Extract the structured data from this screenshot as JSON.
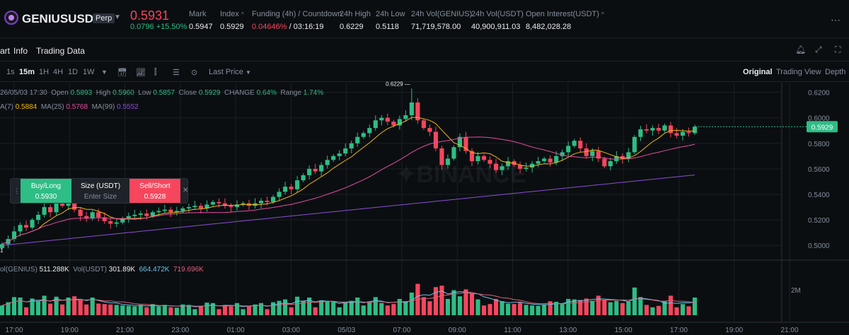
{
  "header": {
    "symbol": "GENIUSUSDT",
    "badge": "Perp",
    "last_price": "0.5931",
    "change": "0.0796 +15.50%",
    "stats": [
      {
        "label": "Mark",
        "value": "0.5947"
      },
      {
        "label": "Index",
        "value": "0.5929"
      },
      {
        "label": "Funding (4h) / Countdown",
        "value_red": "0.04646%",
        "value": "/ 03:16:19"
      },
      {
        "label": "24h High",
        "value": "0.6229"
      },
      {
        "label": "24h Low",
        "value": "0.5118"
      },
      {
        "label": "24h Vol(GENIUS)",
        "value": "71,719,578.00"
      },
      {
        "label": "24h Vol(USDT)",
        "value": "40,900,911.03"
      },
      {
        "label": "Open Interest(USDT)",
        "value": "8,482,028.28"
      }
    ]
  },
  "tabs": {
    "chart": "art",
    "info": "Info",
    "trading_data": "Trading Data"
  },
  "toolbar": {
    "intervals": [
      "1s",
      "15m",
      "1H",
      "4H",
      "1D",
      "1W"
    ],
    "active_interval": "15m",
    "price_type": "Last Price",
    "views": [
      "Original",
      "Trading View",
      "Depth"
    ],
    "active_view": "Original"
  },
  "ohlc_line": {
    "date": "26/05/03 17:30",
    "open_label": "Open",
    "open": "0.5893",
    "high_label": "High",
    "high": "0.5960",
    "low_label": "Low",
    "low": "0.5857",
    "close_label": "Close",
    "close": "0.5929",
    "change_label": "CHANGE",
    "change": "0.64%",
    "range_label": "Range",
    "range": "1.74%"
  },
  "ma_line": {
    "ma7_label": "A(7)",
    "ma7": "0.5884",
    "ma25_label": "MA(25)",
    "ma25": "0.5768",
    "ma99_label": "MA(99)",
    "ma99": "0.5552"
  },
  "vol_line": {
    "vol_genius_label": "ol(GENIUS)",
    "vol_genius": "511.288K",
    "vol_usdt_label": "Vol(USDT)",
    "vol_usdt": "301.89K",
    "v1": "664.472K",
    "v2": "719.696K"
  },
  "order_panel": {
    "buy_label": "Buy/Long",
    "buy_price": "0.5930",
    "size_label": "Size (USDT)",
    "size_placeholder": "Enter Size",
    "sell_label": "Sell/Short",
    "sell_price": "0.5928"
  },
  "chart_data": {
    "type": "candlestick",
    "y_ticks": [
      "0.6200",
      "0.6000",
      "0.5800",
      "0.5600",
      "0.5400",
      "0.5200",
      "0.5000"
    ],
    "y_tick_values": [
      0.62,
      0.6,
      0.58,
      0.56,
      0.54,
      0.52,
      0.5
    ],
    "x_ticks": [
      "17:00",
      "19:00",
      "21:00",
      "23:00",
      "01:00",
      "03:00",
      "05/03",
      "07:00",
      "09:00",
      "11:00",
      "13:00",
      "15:00",
      "17:00",
      "19:00",
      "21:00"
    ],
    "current_price_label": "0.5929",
    "high_marker": "0.6229",
    "low_marker": "1",
    "volume_tick": "2M",
    "close": [
      0.501,
      0.505,
      0.511,
      0.516,
      0.514,
      0.52,
      0.524,
      0.53,
      0.526,
      0.533,
      0.531,
      0.536,
      0.528,
      0.523,
      0.521,
      0.526,
      0.522,
      0.519,
      0.517,
      0.518,
      0.521,
      0.523,
      0.524,
      0.525,
      0.523,
      0.526,
      0.527,
      0.528,
      0.526,
      0.527,
      0.529,
      0.53,
      0.531,
      0.529,
      0.532,
      0.534,
      0.533,
      0.531,
      0.53,
      0.532,
      0.533,
      0.531,
      0.533,
      0.535,
      0.534,
      0.538,
      0.542,
      0.546,
      0.544,
      0.551,
      0.555,
      0.56,
      0.558,
      0.563,
      0.567,
      0.57,
      0.572,
      0.576,
      0.58,
      0.585,
      0.588,
      0.592,
      0.598,
      0.6,
      0.597,
      0.594,
      0.599,
      0.602,
      0.612,
      0.598,
      0.592,
      0.589,
      0.576,
      0.563,
      0.568,
      0.577,
      0.585,
      0.574,
      0.566,
      0.57,
      0.567,
      0.564,
      0.559,
      0.562,
      0.566,
      0.563,
      0.56,
      0.561,
      0.564,
      0.566,
      0.568,
      0.565,
      0.57,
      0.573,
      0.578,
      0.582,
      0.576,
      0.57,
      0.574,
      0.568,
      0.562,
      0.566,
      0.57,
      0.568,
      0.573,
      0.585,
      0.591,
      0.59,
      0.592,
      0.59,
      0.594,
      0.588,
      0.586,
      0.589,
      0.588,
      0.593
    ]
  }
}
